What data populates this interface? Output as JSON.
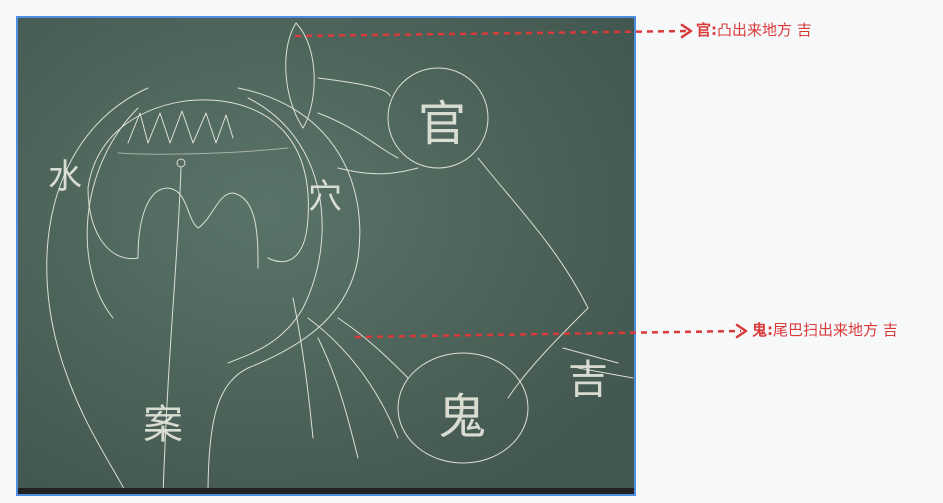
{
  "annotations": [
    {
      "term": "官",
      "sep": ":",
      "desc": "凸出来地方 吉"
    },
    {
      "term": "鬼",
      "sep": ":",
      "desc": "尾巴扫出来地方 吉"
    }
  ],
  "board_marks": {
    "guan_char": "官",
    "gui_char": "鬼",
    "ji_char": "吉",
    "left_char": "水",
    "mid_char": "穴",
    "bottom_char": "案"
  },
  "colors": {
    "annotation": "#d93a3a",
    "board": "#4f6860",
    "chalk": "#e8eadf",
    "frame": "#4d8ee0"
  }
}
